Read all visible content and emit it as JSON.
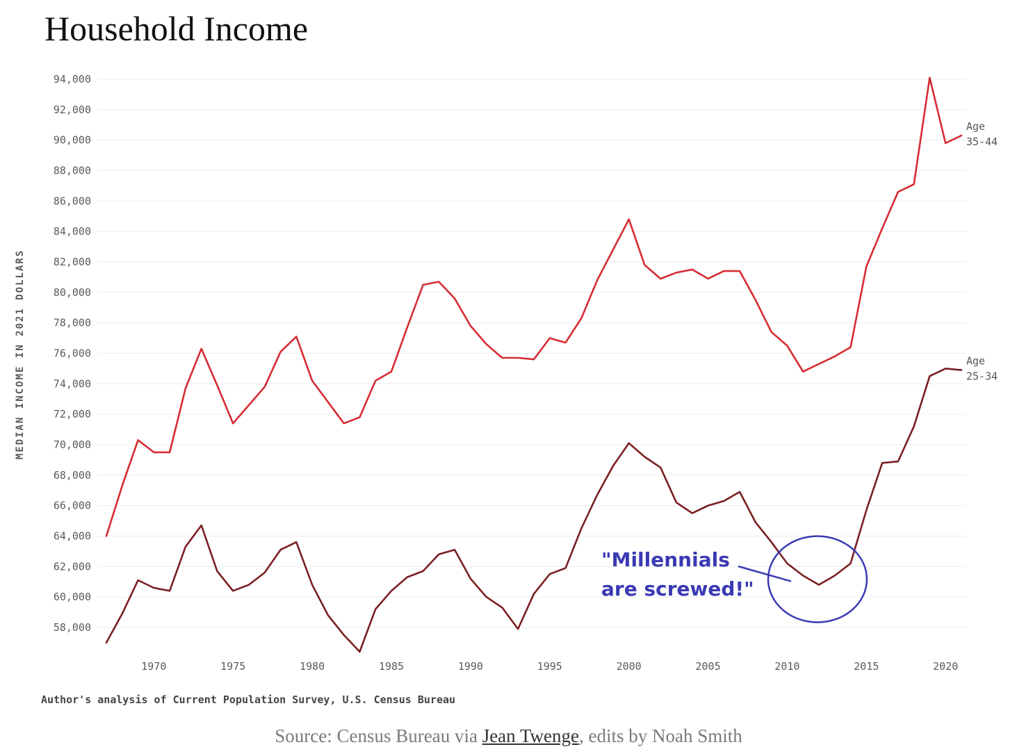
{
  "chart_data": {
    "type": "line",
    "title": "Household Income",
    "ylabel": "MEDIAN INCOME IN 2021 DOLLARS",
    "xlabel": "",
    "xlim": [
      1967,
      2021
    ],
    "ylim": [
      57000,
      94500
    ],
    "x_ticks": [
      1970,
      1975,
      1980,
      1985,
      1990,
      1995,
      2000,
      2005,
      2010,
      2015,
      2020
    ],
    "y_ticks": [
      58000,
      60000,
      62000,
      64000,
      66000,
      68000,
      70000,
      72000,
      74000,
      76000,
      78000,
      80000,
      82000,
      84000,
      86000,
      88000,
      90000,
      92000,
      94000
    ],
    "y_tick_labels": [
      "58,000",
      "60,000",
      "62,000",
      "64,000",
      "66,000",
      "68,000",
      "70,000",
      "72,000",
      "74,000",
      "76,000",
      "78,000",
      "80,000",
      "82,000",
      "84,000",
      "86,000",
      "88,000",
      "90,000",
      "92,000",
      "94,000"
    ],
    "grid": true,
    "x": [
      1967,
      1968,
      1969,
      1970,
      1971,
      1972,
      1973,
      1974,
      1975,
      1976,
      1977,
      1978,
      1979,
      1980,
      1981,
      1982,
      1983,
      1984,
      1985,
      1986,
      1987,
      1988,
      1989,
      1990,
      1991,
      1992,
      1993,
      1994,
      1995,
      1996,
      1997,
      1998,
      1999,
      2000,
      2001,
      2002,
      2003,
      2004,
      2005,
      2006,
      2007,
      2008,
      2009,
      2010,
      2011,
      2012,
      2013,
      2014,
      2015,
      2016,
      2017,
      2018,
      2019,
      2020,
      2021
    ],
    "series": [
      {
        "label_line1": "Age",
        "label_line2": "35-44",
        "color": "#d62b32",
        "values": [
          64000,
          67300,
          70300,
          69500,
          69500,
          73700,
          76300,
          73900,
          71400,
          72600,
          73800,
          76100,
          77100,
          74200,
          72800,
          71400,
          71800,
          74200,
          74800,
          77700,
          80500,
          80700,
          79600,
          77800,
          76600,
          75700,
          75700,
          75600,
          77000,
          76700,
          78300,
          80800,
          82800,
          84800,
          81800,
          80900,
          81300,
          81500,
          80900,
          81400,
          81400,
          79500,
          77400,
          76500,
          74800,
          75300,
          75800,
          76400,
          81700,
          84200,
          86600,
          87100,
          94100,
          89800,
          90300
        ]
      },
      {
        "label_line1": "Age",
        "label_line2": "25-34",
        "color": "#7a1f22",
        "values": [
          57000,
          58900,
          61100,
          60600,
          60400,
          63300,
          64700,
          61700,
          60400,
          60800,
          61600,
          63100,
          63600,
          60800,
          58800,
          57500,
          56400,
          59200,
          60400,
          61300,
          61700,
          62800,
          63100,
          61200,
          60000,
          59300,
          57900,
          60200,
          61500,
          61900,
          64500,
          66700,
          68600,
          70100,
          69200,
          68500,
          66200,
          65500,
          66000,
          66300,
          66900,
          64900,
          63600,
          62200,
          61400,
          60800,
          61400,
          62200,
          65700,
          68800,
          68900,
          71200,
          74500,
          75000,
          74900
        ]
      }
    ],
    "source_note": "Author's analysis of Current Population Survey, U.S. Census Bureau",
    "annotation_line1": "\"Millennials",
    "annotation_line2": "are screwed!\"",
    "annotation_color": "#3a3ab4",
    "annotation_target": {
      "x": 2012,
      "y": 60800
    }
  },
  "caption": {
    "prefix": "Source: Census Bureau via ",
    "link_text": "Jean Twenge",
    "suffix": ", edits by Noah Smith"
  }
}
